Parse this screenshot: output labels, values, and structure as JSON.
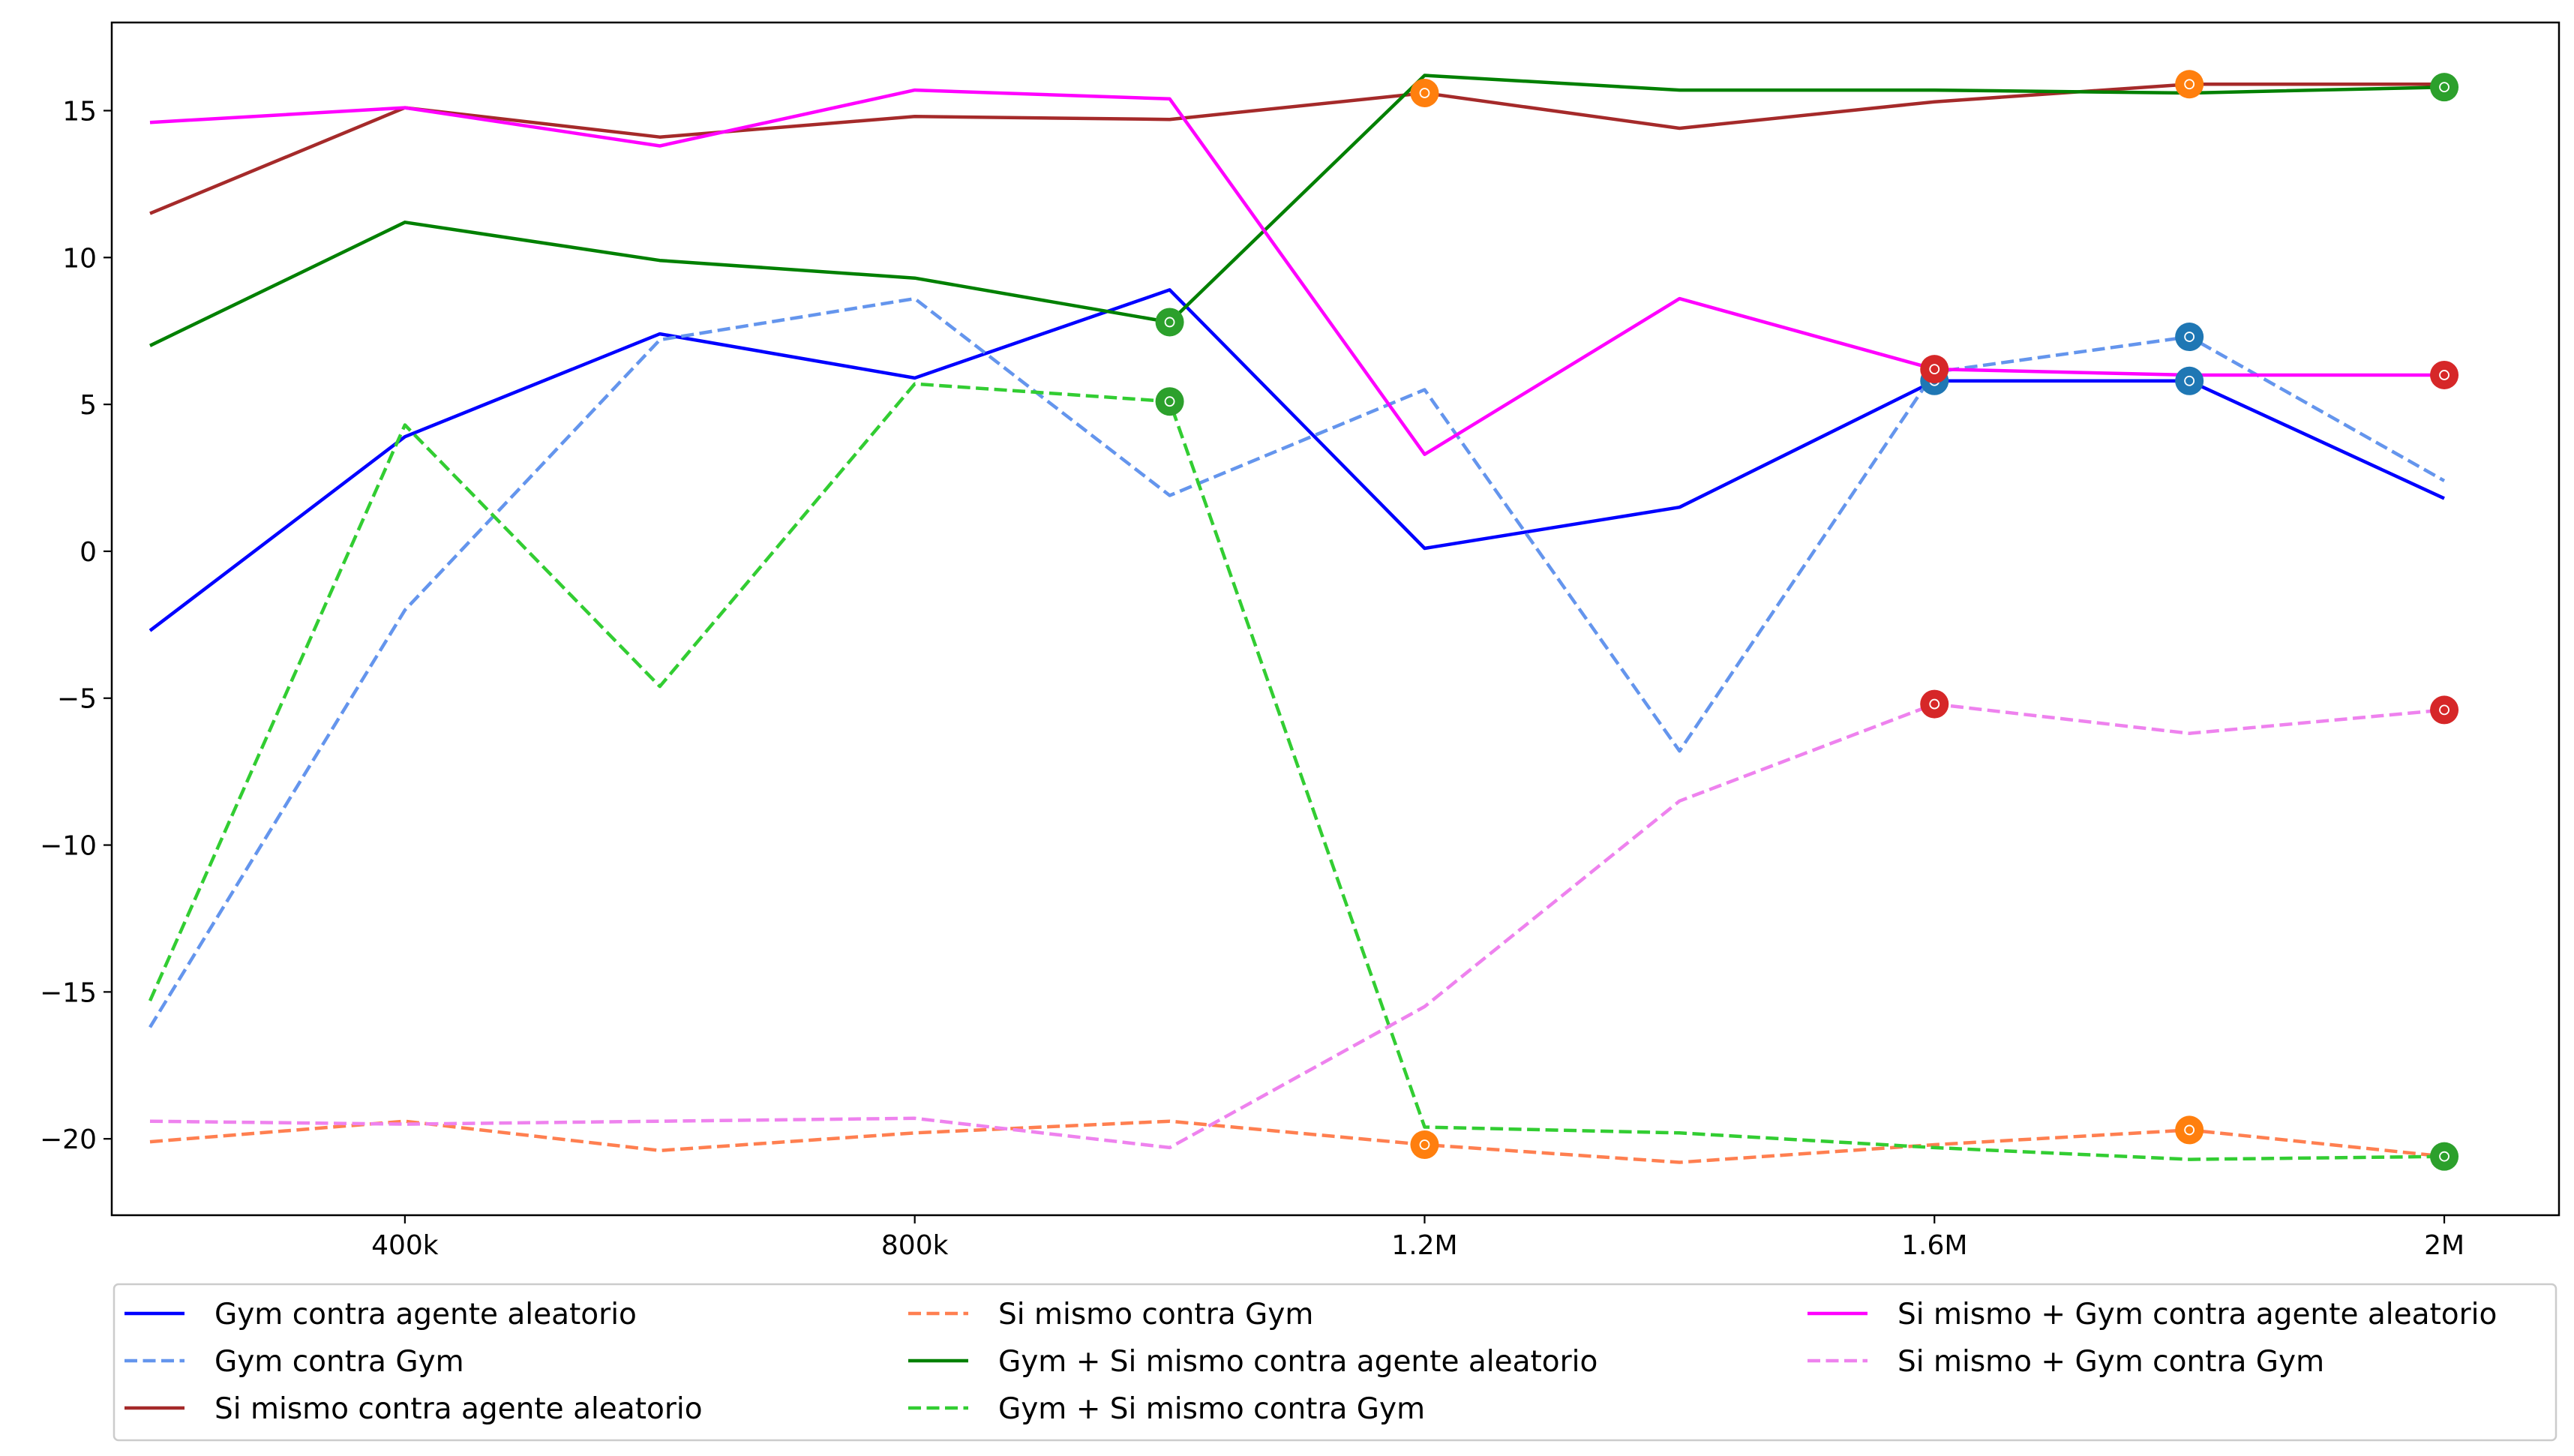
{
  "chart_data": {
    "type": "line",
    "title": "",
    "xlabel": "",
    "ylabel": "",
    "x": [
      200000,
      400000,
      600000,
      800000,
      1000000,
      1200000,
      1400000,
      1600000,
      1800000,
      2000000
    ],
    "xlim": [
      170000,
      2090000
    ],
    "ylim": [
      -22.6,
      18.0
    ],
    "x_ticks": [
      {
        "value": 400000,
        "label": "400k"
      },
      {
        "value": 800000,
        "label": "800k"
      },
      {
        "value": 1200000,
        "label": "1.2M"
      },
      {
        "value": 1600000,
        "label": "1.6M"
      },
      {
        "value": 2000000,
        "label": "2M"
      }
    ],
    "y_ticks": [
      {
        "value": 15,
        "label": "15"
      },
      {
        "value": 10,
        "label": "10"
      },
      {
        "value": 5,
        "label": "5"
      },
      {
        "value": 0,
        "label": "0"
      },
      {
        "value": -5,
        "label": "−5"
      },
      {
        "value": -10,
        "label": "−10"
      },
      {
        "value": -15,
        "label": "−15"
      },
      {
        "value": -20,
        "label": "−20"
      }
    ],
    "grid": false,
    "legend": {
      "placement": "bottom",
      "columns": 3
    },
    "series": [
      {
        "name": "Gym contra agente aleatorio",
        "color": "#0000ff",
        "dashed": false,
        "values": [
          -2.7,
          3.9,
          7.4,
          5.9,
          8.9,
          0.1,
          1.5,
          5.8,
          5.8,
          1.8
        ],
        "markers": [
          {
            "index": 7,
            "color": "#1f77b4"
          },
          {
            "index": 8,
            "color": "#1f77b4"
          }
        ]
      },
      {
        "name": "Gym contra Gym",
        "color": "#6495ed",
        "dashed": true,
        "values": [
          -16.2,
          -2.0,
          7.2,
          8.6,
          1.9,
          5.5,
          -6.8,
          6.1,
          7.3,
          2.4
        ],
        "markers": [
          {
            "index": 8,
            "color": "#1f77b4"
          }
        ]
      },
      {
        "name": "Si mismo contra agente aleatorio",
        "color": "#a52a2a",
        "dashed": false,
        "values": [
          11.5,
          15.1,
          14.1,
          14.8,
          14.7,
          15.6,
          14.4,
          15.3,
          15.9,
          15.9
        ],
        "markers": [
          {
            "index": 5,
            "color": "#ff7f0e"
          },
          {
            "index": 8,
            "color": "#ff7f0e"
          }
        ]
      },
      {
        "name": "Si mismo contra Gym",
        "color": "#ff7f50",
        "dashed": true,
        "values": [
          -20.1,
          -19.4,
          -20.4,
          -19.8,
          -19.4,
          -20.2,
          -20.8,
          -20.2,
          -19.7,
          -20.6
        ],
        "markers": [
          {
            "index": 5,
            "color": "#ff7f0e"
          },
          {
            "index": 8,
            "color": "#ff7f0e"
          }
        ]
      },
      {
        "name": "Gym + Si mismo contra agente aleatorio",
        "color": "#008000",
        "dashed": false,
        "values": [
          7.0,
          11.2,
          9.9,
          9.3,
          7.8,
          16.2,
          15.7,
          15.7,
          15.6,
          15.8
        ],
        "markers": [
          {
            "index": 4,
            "color": "#2ca02c"
          },
          {
            "index": 9,
            "color": "#2ca02c"
          }
        ]
      },
      {
        "name": "Gym + Si mismo contra Gym",
        "color": "#32cd32",
        "dashed": true,
        "values": [
          -15.3,
          4.3,
          -4.6,
          5.7,
          5.1,
          -19.6,
          -19.8,
          -20.3,
          -20.7,
          -20.6
        ],
        "markers": [
          {
            "index": 4,
            "color": "#2ca02c"
          },
          {
            "index": 9,
            "color": "#2ca02c"
          }
        ]
      },
      {
        "name": "Si mismo + Gym contra agente aleatorio",
        "color": "#ff00ff",
        "dashed": false,
        "values": [
          14.6,
          15.1,
          13.8,
          15.7,
          15.4,
          3.3,
          8.6,
          6.2,
          6.0,
          6.0
        ],
        "markers": [
          {
            "index": 7,
            "color": "#d62728"
          },
          {
            "index": 9,
            "color": "#d62728"
          }
        ]
      },
      {
        "name": "Si mismo + Gym contra Gym",
        "color": "#ee82ee",
        "dashed": true,
        "values": [
          -19.4,
          -19.5,
          -19.4,
          -19.3,
          -20.3,
          -15.5,
          -8.5,
          -5.2,
          -6.2,
          -5.4
        ],
        "markers": [
          {
            "index": 7,
            "color": "#d62728"
          },
          {
            "index": 9,
            "color": "#d62728"
          }
        ]
      }
    ]
  }
}
